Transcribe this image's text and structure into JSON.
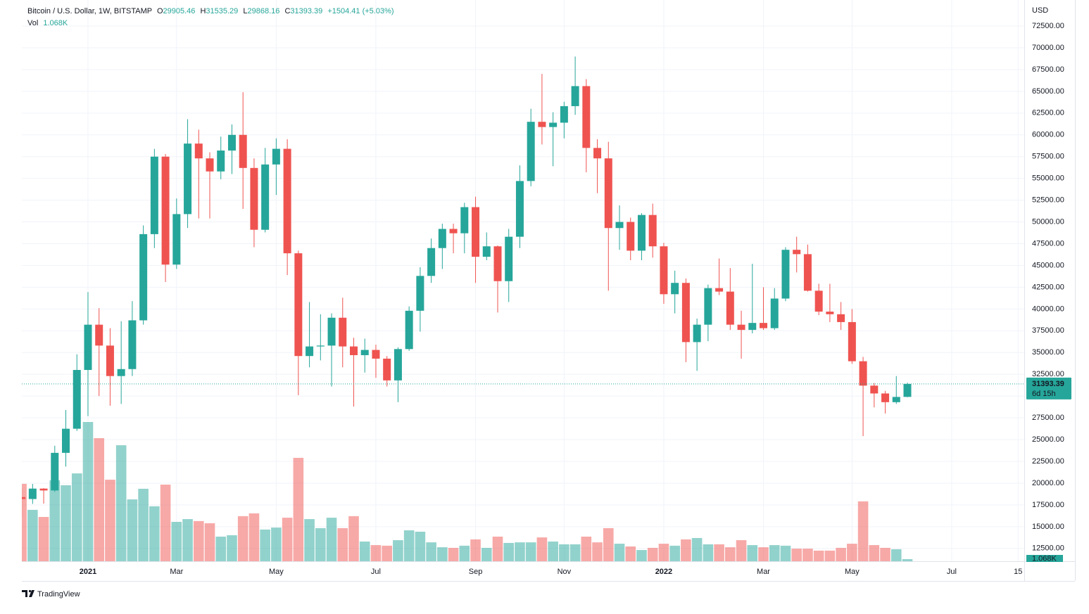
{
  "chart_data": {
    "type": "candlestick",
    "title": "Bitcoin / U.S. Dollar, 1W, BITSTAMP",
    "ohlc_labels": [
      "O",
      "H",
      "L",
      "C"
    ],
    "change_label": "+1504.41 (+5.03%)",
    "countdown": "6d 15h",
    "currency": "USD",
    "up_color": "#26a69a",
    "down_color": "#ef5350",
    "grid": true,
    "categories": [
      null,
      null,
      null,
      null,
      null,
      null,
      "2021",
      null,
      null,
      null,
      null,
      null,
      null,
      null,
      "Mar",
      null,
      null,
      null,
      null,
      null,
      null,
      null,
      null,
      "May",
      null,
      null,
      null,
      null,
      null,
      null,
      null,
      null,
      "Jul",
      null,
      null,
      null,
      null,
      null,
      null,
      null,
      null,
      "Sep",
      null,
      null,
      null,
      null,
      null,
      null,
      null,
      "Nov",
      null,
      null,
      null,
      null,
      null,
      null,
      null,
      null,
      "2022",
      null,
      null,
      null,
      null,
      null,
      null,
      null,
      null,
      "Mar",
      null,
      null,
      null,
      null,
      null,
      null,
      null,
      "May",
      null,
      null,
      null,
      null,
      null,
      null,
      null,
      null,
      "Jul",
      null,
      null,
      null,
      null,
      null,
      "15"
    ],
    "open": [
      18400,
      18177,
      19375,
      19160,
      23480,
      26250,
      33000,
      38200,
      35800,
      32300,
      33100,
      38700,
      48600,
      57500,
      45100,
      50900,
      59000,
      57300,
      55800,
      58200,
      60000,
      56200,
      49100,
      56600,
      58400,
      46400,
      34600,
      35700,
      35800,
      39000,
      35700,
      34700,
      35300,
      34300,
      31800,
      35400,
      39800,
      43800,
      47000,
      49200,
      48700,
      51700,
      46000,
      47200,
      43200,
      48300,
      54700,
      61500,
      60900,
      61400,
      63300,
      65600,
      58500,
      57300,
      49300,
      50000,
      46700,
      50800,
      47200,
      41700,
      43000,
      36200,
      38200,
      42400,
      42000,
      38200,
      37600,
      38400,
      37800,
      41200,
      46800,
      46300,
      42100,
      39700,
      39400,
      38500,
      34000,
      31200,
      30300,
      29300,
      29905.46,
      null,
      null,
      null,
      null,
      null,
      null,
      null,
      null,
      null,
      null
    ],
    "high": [
      19400,
      19915,
      19420,
      24300,
      28400,
      34800,
      41950,
      40100,
      37800,
      38600,
      40900,
      49600,
      58400,
      57800,
      52700,
      61800,
      60600,
      58000,
      59800,
      61200,
      64900,
      57300,
      58500,
      59600,
      59500,
      46700,
      40800,
      39400,
      39500,
      41300,
      36700,
      36600,
      35900,
      34600,
      35600,
      40300,
      44800,
      48100,
      49800,
      49800,
      52200,
      52900,
      48800,
      47300,
      49200,
      56500,
      63000,
      67000,
      62600,
      63800,
      69000,
      66400,
      59500,
      59200,
      51900,
      50500,
      51000,
      52100,
      47600,
      44400,
      43500,
      38900,
      42800,
      45800,
      44700,
      39800,
      45200,
      42500,
      42400,
      47100,
      48300,
      47400,
      42900,
      42900,
      40800,
      40000,
      34500,
      31500,
      30600,
      32300,
      31535.29,
      null,
      null,
      null,
      null,
      null,
      null,
      null,
      null,
      null,
      null
    ],
    "low": [
      16200,
      17620,
      17650,
      19000,
      21900,
      26000,
      27700,
      30000,
      28900,
      29100,
      32300,
      38200,
      47000,
      43100,
      44600,
      49300,
      50400,
      50400,
      54900,
      55500,
      51500,
      47100,
      48800,
      53100,
      43900,
      30100,
      33300,
      34100,
      31100,
      33300,
      28800,
      32700,
      32100,
      31100,
      29300,
      35200,
      37400,
      43000,
      44600,
      46400,
      46400,
      43000,
      45600,
      39600,
      40800,
      47000,
      54100,
      58900,
      56400,
      59600,
      62300,
      55700,
      53300,
      42100,
      46800,
      45600,
      45600,
      45900,
      40600,
      39500,
      33900,
      32900,
      36300,
      41600,
      37600,
      34300,
      37200,
      37600,
      37600,
      40900,
      44200,
      42000,
      39300,
      38500,
      37600,
      33700,
      25400,
      28700,
      28000,
      29100,
      29868.16,
      null,
      null,
      null,
      null,
      null,
      null,
      null,
      null,
      null,
      null
    ],
    "close": [
      18177,
      19375,
      19160,
      23480,
      26250,
      33000,
      38200,
      35800,
      32300,
      33100,
      38700,
      48600,
      57500,
      45100,
      50900,
      59000,
      57300,
      55800,
      58200,
      60000,
      56200,
      49100,
      56600,
      58400,
      46400,
      34600,
      35700,
      35800,
      39000,
      35700,
      34700,
      35300,
      34300,
      31800,
      35400,
      39800,
      43800,
      47000,
      49200,
      48700,
      51700,
      46000,
      47200,
      43200,
      48300,
      54700,
      61500,
      60900,
      61400,
      63300,
      65600,
      58500,
      57300,
      49300,
      50000,
      46700,
      50800,
      47200,
      41700,
      43000,
      36200,
      38200,
      42400,
      42000,
      38200,
      37600,
      38400,
      37800,
      41200,
      46800,
      46300,
      42100,
      39700,
      39400,
      38500,
      34000,
      31200,
      30300,
      29300,
      29900,
      31393.39,
      null,
      null,
      null,
      null,
      null,
      null,
      null,
      null,
      null,
      null
    ],
    "volume": {
      "name": "Vol",
      "last_label": "1.068K",
      "values": [
        39.3,
        26.1,
        22.5,
        41.1,
        38.6,
        44.6,
        70.7,
        62.5,
        41.4,
        58.9,
        31.4,
        36.8,
        27.9,
        38.9,
        20,
        21.4,
        20.4,
        19.3,
        12.5,
        13.2,
        22.9,
        24.3,
        16.1,
        17.1,
        22.1,
        52.5,
        21.4,
        16.8,
        22.1,
        16.8,
        22.9,
        10,
        8.2,
        7.9,
        10.7,
        15.7,
        15,
        9.6,
        7.1,
        6.8,
        7.9,
        11.1,
        6.8,
        12.5,
        9.3,
        9.6,
        9.6,
        12.1,
        10,
        8.6,
        8.6,
        12.5,
        9.6,
        16.8,
        8.9,
        7.5,
        5.7,
        6.8,
        8.9,
        7.9,
        11.1,
        11.8,
        8.6,
        8.6,
        7.1,
        10.7,
        8.2,
        7.1,
        8.2,
        7.9,
        6.4,
        6.4,
        5.4,
        5.4,
        6.8,
        8.9,
        30.4,
        8.2,
        6.8,
        6.1,
        1.068,
        null,
        null,
        null,
        null,
        null,
        null,
        null,
        null,
        null,
        null
      ]
    },
    "ylim": [
      11030,
      75490
    ],
    "yticks": [
      {
        "value": 12500,
        "label": "12500.00"
      },
      {
        "value": 15000,
        "label": "15000.00"
      },
      {
        "value": 17500,
        "label": "17500.00"
      },
      {
        "value": 20000,
        "label": "20000.00"
      },
      {
        "value": 22500,
        "label": "22500.00"
      },
      {
        "value": 25000,
        "label": "25000.00"
      },
      {
        "value": 27500,
        "label": "27500.00"
      },
      {
        "value": 30000,
        "label": "30000.00"
      },
      {
        "value": 32500,
        "label": "32500.00"
      },
      {
        "value": 35000,
        "label": "35000.00"
      },
      {
        "value": 37500,
        "label": "37500.00"
      },
      {
        "value": 40000,
        "label": "40000.00"
      },
      {
        "value": 42500,
        "label": "42500.00"
      },
      {
        "value": 45000,
        "label": "45000.00"
      },
      {
        "value": 47500,
        "label": "47500.00"
      },
      {
        "value": 50000,
        "label": "50000.00"
      },
      {
        "value": 52500,
        "label": "52500.00"
      },
      {
        "value": 55000,
        "label": "55000.00"
      },
      {
        "value": 57500,
        "label": "57500.00"
      },
      {
        "value": 60000,
        "label": "60000.00"
      },
      {
        "value": 62500,
        "label": "62500.00"
      },
      {
        "value": 65000,
        "label": "65000.00"
      },
      {
        "value": 67500,
        "label": "67500.00"
      },
      {
        "value": 70000,
        "label": "70000.00"
      },
      {
        "value": 72500,
        "label": "72500.00"
      }
    ]
  },
  "brand": "TradingView"
}
